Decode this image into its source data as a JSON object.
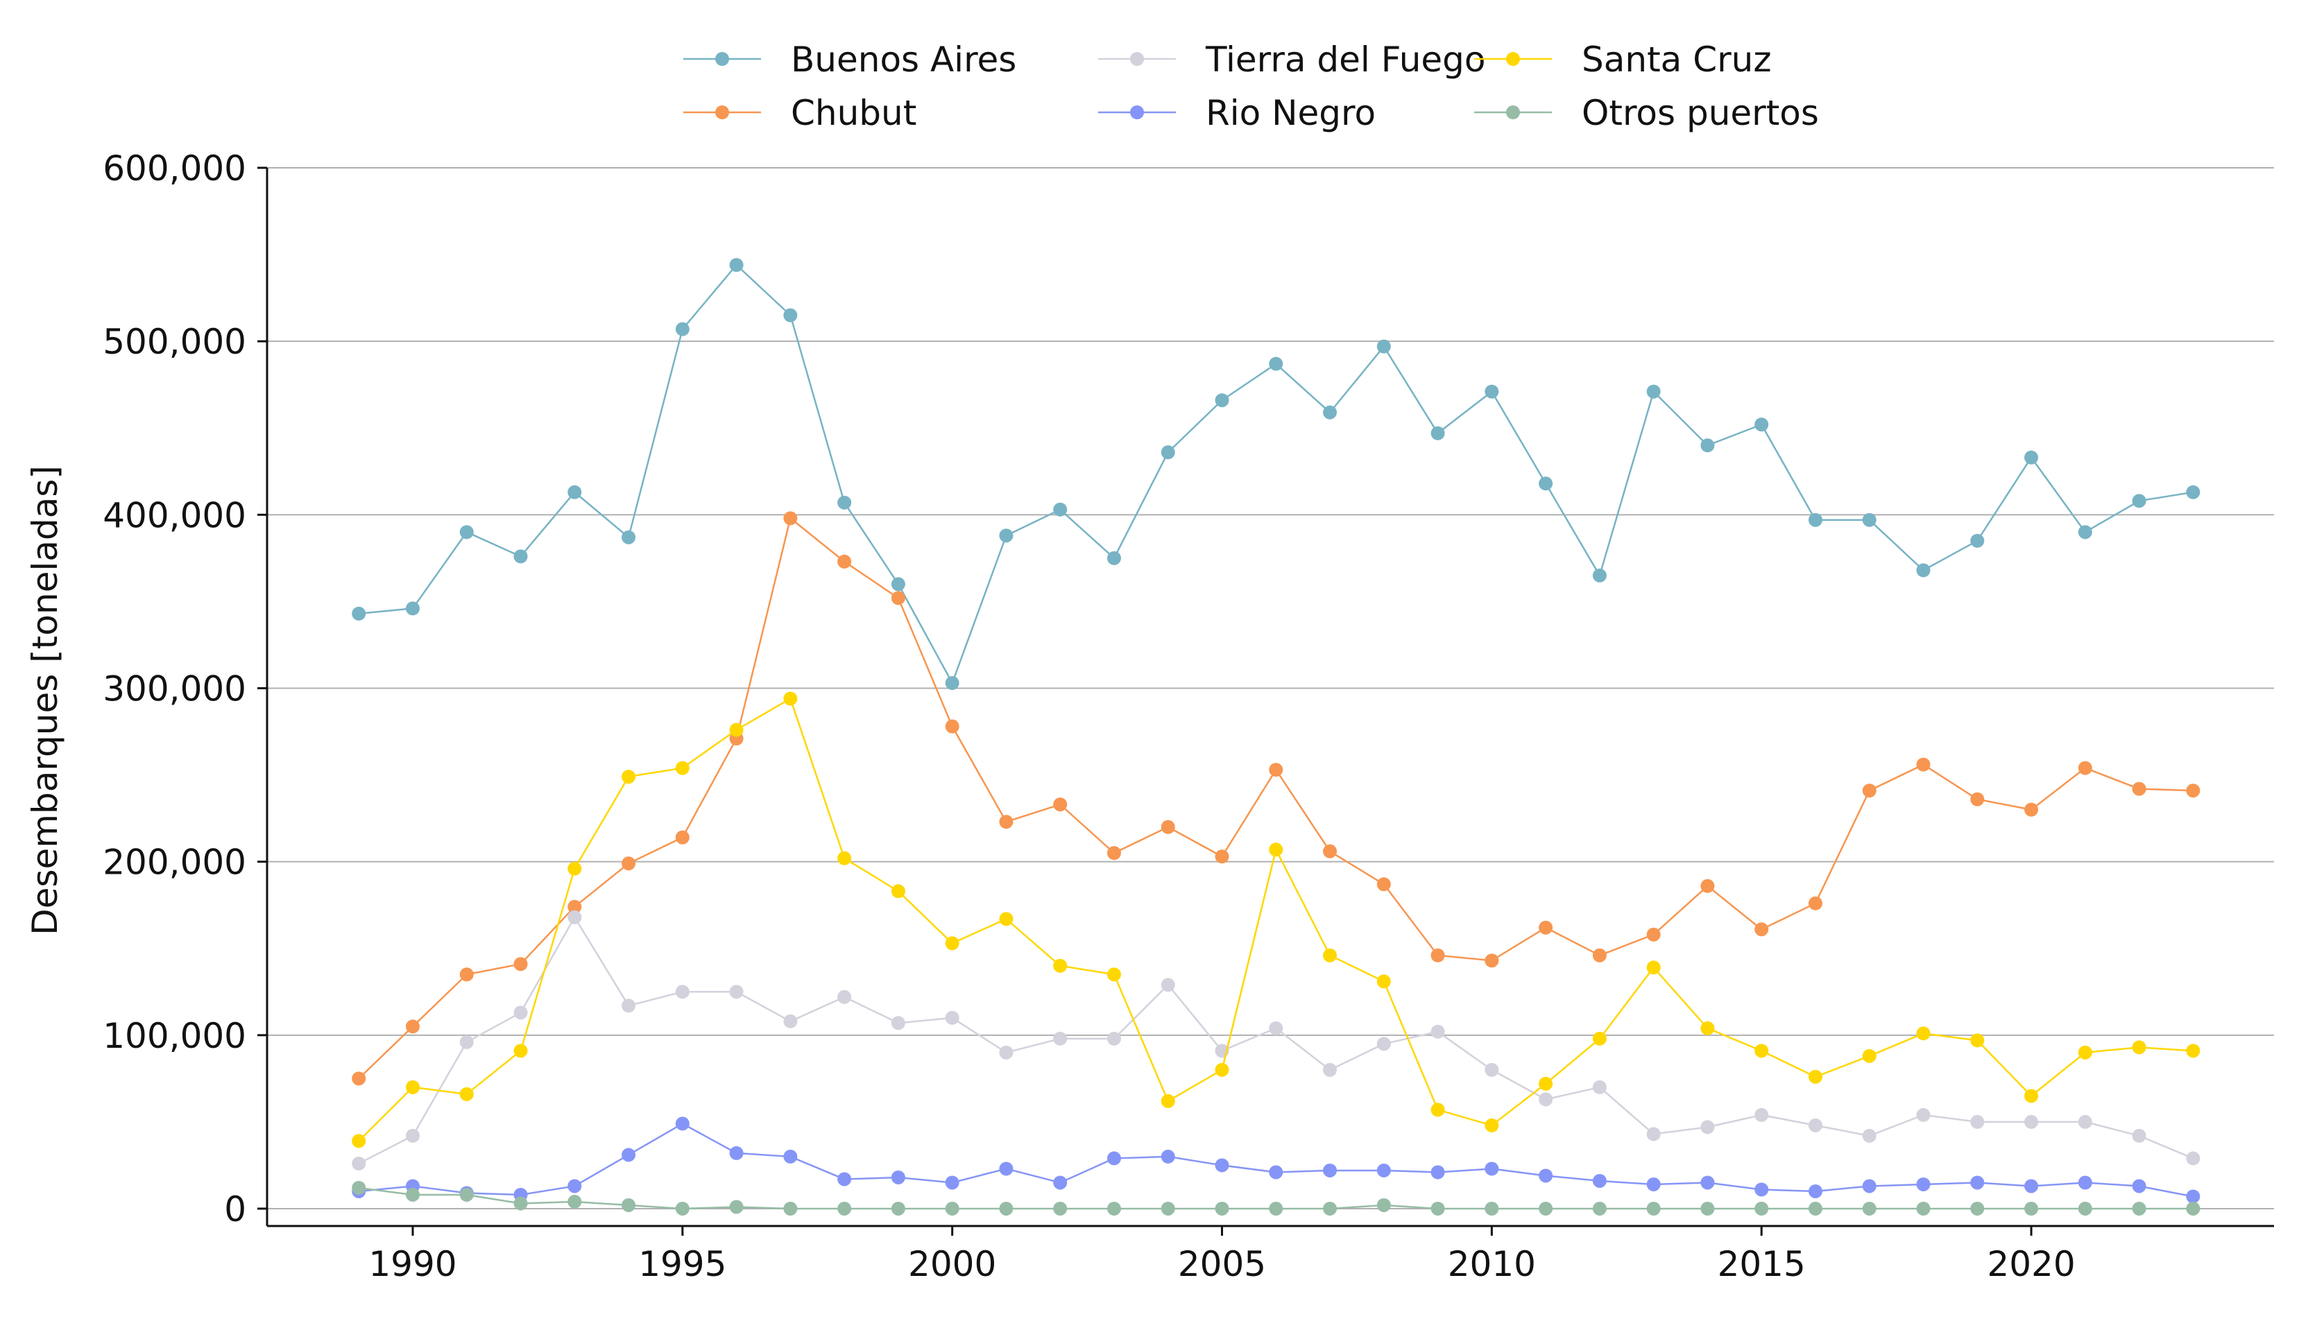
{
  "chart_data": {
    "type": "line",
    "title": "",
    "xlabel": "",
    "ylabel": "Desembarques [toneladas]",
    "xlim": [
      1987.3,
      2024.5
    ],
    "ylim": [
      -10000,
      600000
    ],
    "x_ticks": [
      1990,
      1995,
      2000,
      2005,
      2010,
      2015,
      2020
    ],
    "y_ticks": [
      0,
      100000,
      200000,
      300000,
      400000,
      500000,
      600000
    ],
    "y_tick_labels": [
      "0",
      "100,000",
      "200,000",
      "300,000",
      "400,000",
      "500,000",
      "600,000"
    ],
    "grid": "horizontal",
    "legend_position": "top-center",
    "x": [
      1989,
      1990,
      1991,
      1992,
      1993,
      1994,
      1995,
      1996,
      1997,
      1998,
      1999,
      2000,
      2001,
      2002,
      2003,
      2004,
      2005,
      2006,
      2007,
      2008,
      2009,
      2010,
      2011,
      2012,
      2013,
      2014,
      2015,
      2016,
      2017,
      2018,
      2019,
      2020,
      2021,
      2022,
      2023
    ],
    "series": [
      {
        "name": "Buenos Aires",
        "color": "#77b3c4",
        "values": [
          343000,
          346000,
          390000,
          376000,
          413000,
          387000,
          507000,
          544000,
          515000,
          407000,
          360000,
          303000,
          388000,
          403000,
          375000,
          436000,
          466000,
          487000,
          459000,
          497000,
          447000,
          471000,
          418000,
          365000,
          471000,
          440000,
          452000,
          397000,
          397000,
          368000,
          385000,
          433000,
          390000,
          408000,
          413000
        ]
      },
      {
        "name": "Chubut",
        "color": "#f79650",
        "values": [
          75000,
          105000,
          135000,
          141000,
          174000,
          199000,
          214000,
          271000,
          398000,
          373000,
          352000,
          278000,
          223000,
          233000,
          205000,
          220000,
          203000,
          253000,
          206000,
          187000,
          146000,
          143000,
          162000,
          146000,
          158000,
          186000,
          161000,
          176000,
          241000,
          256000,
          236000,
          230000,
          254000,
          242000,
          241000
        ]
      },
      {
        "name": "Tierra del Fuego",
        "color": "#d3d1dc",
        "values": [
          26000,
          42000,
          96000,
          113000,
          168000,
          117000,
          125000,
          125000,
          108000,
          122000,
          107000,
          110000,
          90000,
          98000,
          98000,
          129000,
          91000,
          104000,
          80000,
          95000,
          102000,
          80000,
          63000,
          70000,
          43000,
          47000,
          54000,
          48000,
          42000,
          54000,
          50000,
          50000,
          50000,
          42000,
          29000
        ]
      },
      {
        "name": "Rio Negro",
        "color": "#8595f7",
        "values": [
          10000,
          13000,
          9000,
          8000,
          13000,
          31000,
          49000,
          32000,
          30000,
          17000,
          18000,
          15000,
          23000,
          15000,
          29000,
          30000,
          25000,
          21000,
          22000,
          22000,
          21000,
          23000,
          19000,
          16000,
          14000,
          15000,
          11000,
          10000,
          13000,
          14000,
          15000,
          13000,
          15000,
          13000,
          7000
        ]
      },
      {
        "name": "Santa Cruz",
        "color": "#ffd700",
        "values": [
          39000,
          70000,
          66000,
          91000,
          196000,
          249000,
          254000,
          276000,
          294000,
          202000,
          183000,
          153000,
          167000,
          140000,
          135000,
          62000,
          80000,
          207000,
          146000,
          131000,
          57000,
          48000,
          72000,
          98000,
          139000,
          104000,
          91000,
          76000,
          88000,
          101000,
          97000,
          65000,
          90000,
          93000,
          91000
        ]
      },
      {
        "name": "Otros puertos",
        "color": "#97bca6",
        "values": [
          12000,
          8000,
          8000,
          3000,
          4000,
          2000,
          0,
          1000,
          0,
          0,
          0,
          0,
          0,
          0,
          0,
          0,
          0,
          0,
          0,
          2000,
          0,
          0,
          0,
          0,
          0,
          0,
          0,
          0,
          0,
          0,
          0,
          0,
          0,
          0,
          0
        ]
      }
    ]
  }
}
